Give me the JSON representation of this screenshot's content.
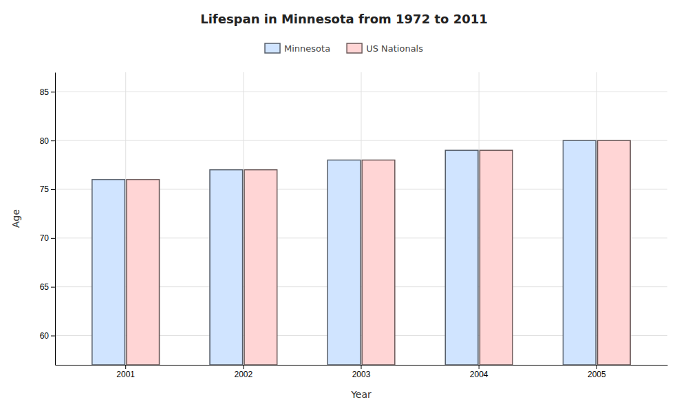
{
  "chart_data": {
    "type": "bar",
    "title": "Lifespan in Minnesota from 1972 to 2011",
    "xlabel": "Year",
    "ylabel": "Age",
    "categories": [
      "2001",
      "2002",
      "2003",
      "2004",
      "2005"
    ],
    "series": [
      {
        "name": "Minnesota",
        "color": "#d0e4ff",
        "values": [
          76,
          77,
          78,
          79,
          80
        ]
      },
      {
        "name": "US Nationals",
        "color": "#ffd5d5",
        "values": [
          76,
          77,
          78,
          79,
          80
        ]
      }
    ],
    "ylim": [
      57,
      87
    ],
    "yticks": [
      60,
      65,
      70,
      75,
      80,
      85
    ],
    "grid": true,
    "legend": "top"
  }
}
